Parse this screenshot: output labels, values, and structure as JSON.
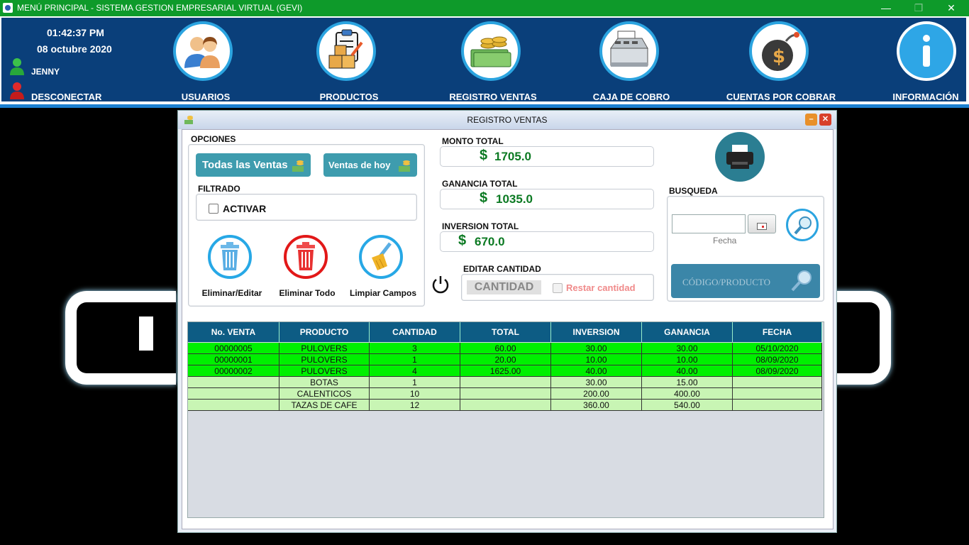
{
  "window": {
    "title": "MENÚ PRINCIPAL - SISTEMA GESTION EMPRESARIAL VIRTUAL (GEVI)",
    "controls": {
      "minimize": "—",
      "restore": "❐",
      "close": "✕"
    }
  },
  "header": {
    "time": "01:42:37 PM",
    "date": "08 octubre 2020",
    "user": "JENNY",
    "disconnect": "DESCONECTAR",
    "nav": [
      {
        "label": "USUARIOS",
        "icon": "users-icon"
      },
      {
        "label": "PRODUCTOS",
        "icon": "products-icon"
      },
      {
        "label": "REGISTRO VENTAS",
        "icon": "money-stack-icon"
      },
      {
        "label": "CAJA DE COBRO",
        "icon": "cash-register-icon"
      },
      {
        "label": "CUENTAS POR COBRAR",
        "icon": "debt-bomb-icon"
      },
      {
        "label": "INFORMACIÓN",
        "icon": "info-icon"
      }
    ]
  },
  "dialog": {
    "title": "REGISTRO VENTAS",
    "options_label": "OPCIONES",
    "btn_all_sales": "Todas las Ventas",
    "btn_today_sales": "Ventas de hoy",
    "filter_label": "FILTRADO",
    "filter_checkbox": "ACTIVAR",
    "actions": {
      "delete_edit": "Eliminar/Editar",
      "delete_all": "Eliminar Todo",
      "clear_fields": "Limpiar Campos"
    },
    "totals": {
      "monto_label": "MONTO TOTAL",
      "monto_value": "1705.0",
      "ganancia_label": "GANANCIA TOTAL",
      "ganancia_value": "1035.0",
      "inversion_label": "INVERSION TOTAL",
      "inversion_value": "670.0",
      "currency": "$"
    },
    "edit_qty_label": "EDITAR CANTIDAD",
    "qty_placeholder": "CANTIDAD",
    "subtract_qty": "Restar cantidad",
    "search_label": "BUSQUEDA",
    "date_caption": "Fecha",
    "code_product_button": "CÓDIGO/PRODUCTO"
  },
  "table": {
    "columns": [
      "No. VENTA",
      "PRODUCTO",
      "CANTIDAD",
      "TOTAL",
      "INVERSION",
      "GANANCIA",
      "FECHA"
    ],
    "rows": [
      {
        "cells": [
          "00000005",
          "PULOVERS",
          "3",
          "60.00",
          "30.00",
          "30.00",
          "05/10/2020"
        ],
        "highlight": true
      },
      {
        "cells": [
          "00000001",
          "PULOVERS",
          "1",
          "20.00",
          "10.00",
          "10.00",
          "08/09/2020"
        ],
        "highlight": true
      },
      {
        "cells": [
          "00000002",
          "PULOVERS",
          "4",
          "1625.00",
          "40.00",
          "40.00",
          "08/09/2020"
        ],
        "highlight": true
      },
      {
        "cells": [
          "",
          "BOTAS",
          "1",
          "",
          "30.00",
          "15.00",
          ""
        ],
        "highlight": false
      },
      {
        "cells": [
          "",
          "CALENTICOS",
          "10",
          "",
          "200.00",
          "400.00",
          ""
        ],
        "highlight": false
      },
      {
        "cells": [
          "",
          "TAZAS DE CAFE",
          "12",
          "",
          "360.00",
          "540.00",
          ""
        ],
        "highlight": false
      }
    ],
    "colors": {
      "highlight": "#00f000",
      "normal": "#c8f5b4",
      "header": "#0d5c84"
    }
  }
}
